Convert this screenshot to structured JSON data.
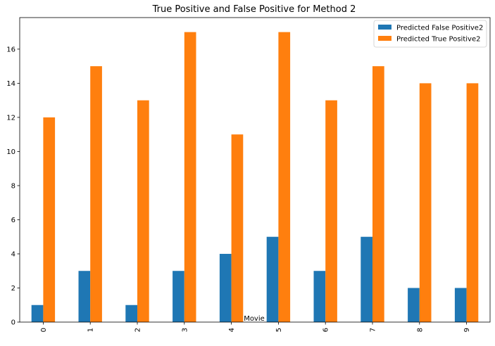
{
  "chart_data": {
    "type": "bar",
    "title": "True Positive and False Positive for Method 2",
    "xlabel": "Movie",
    "ylabel": "",
    "categories": [
      "0",
      "1",
      "2",
      "3",
      "4",
      "5",
      "6",
      "7",
      "8",
      "9"
    ],
    "series": [
      {
        "name": "Predicted False Positive2",
        "color": "#1f77b4",
        "values": [
          1,
          3,
          1,
          3,
          4,
          5,
          3,
          5,
          2,
          2
        ]
      },
      {
        "name": "Predicted True Positive2",
        "color": "#ff7f0e",
        "values": [
          12,
          15,
          13,
          17,
          11,
          17,
          13,
          15,
          14,
          14
        ]
      }
    ],
    "ylim": [
      0,
      17.85
    ],
    "yticks": [
      0,
      2,
      4,
      6,
      8,
      10,
      12,
      14,
      16
    ],
    "grid": false,
    "legend_position": "top-right"
  }
}
